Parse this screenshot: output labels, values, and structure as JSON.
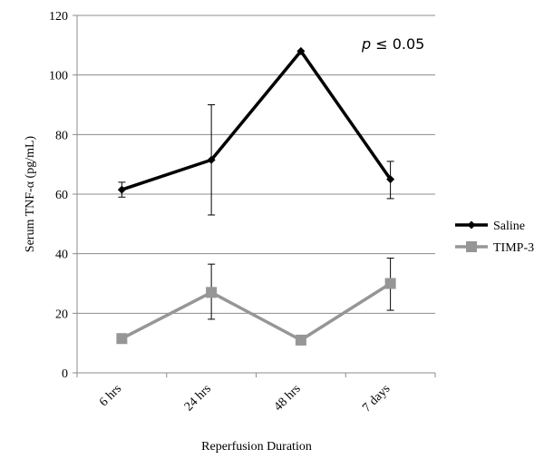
{
  "chart_data": {
    "type": "line",
    "title": "",
    "xlabel": "Reperfusion Duration",
    "ylabel": "Serum TNF-α (pg/mL)",
    "categories": [
      "6 hrs",
      "24 hrs",
      "48 hrs",
      "7 days"
    ],
    "ylim": [
      0,
      120
    ],
    "yticks": [
      0,
      20,
      40,
      60,
      80,
      100,
      120
    ],
    "grid": true,
    "legend_position": "right",
    "annotation": {
      "italic": "p",
      "rest": " ≤ 0.05"
    },
    "series": [
      {
        "name": "Saline",
        "color": "#000000",
        "marker": "diamond",
        "values": [
          61.5,
          71.5,
          108,
          65
        ],
        "error_high": [
          64,
          90,
          null,
          71
        ],
        "error_low": [
          59,
          53,
          null,
          58.5
        ]
      },
      {
        "name": "TIMP-3",
        "color": "#969696",
        "marker": "square",
        "values": [
          11.5,
          27,
          11,
          30
        ],
        "error_high": [
          null,
          36.5,
          null,
          38.5
        ],
        "error_low": [
          null,
          18,
          null,
          21
        ]
      }
    ]
  }
}
